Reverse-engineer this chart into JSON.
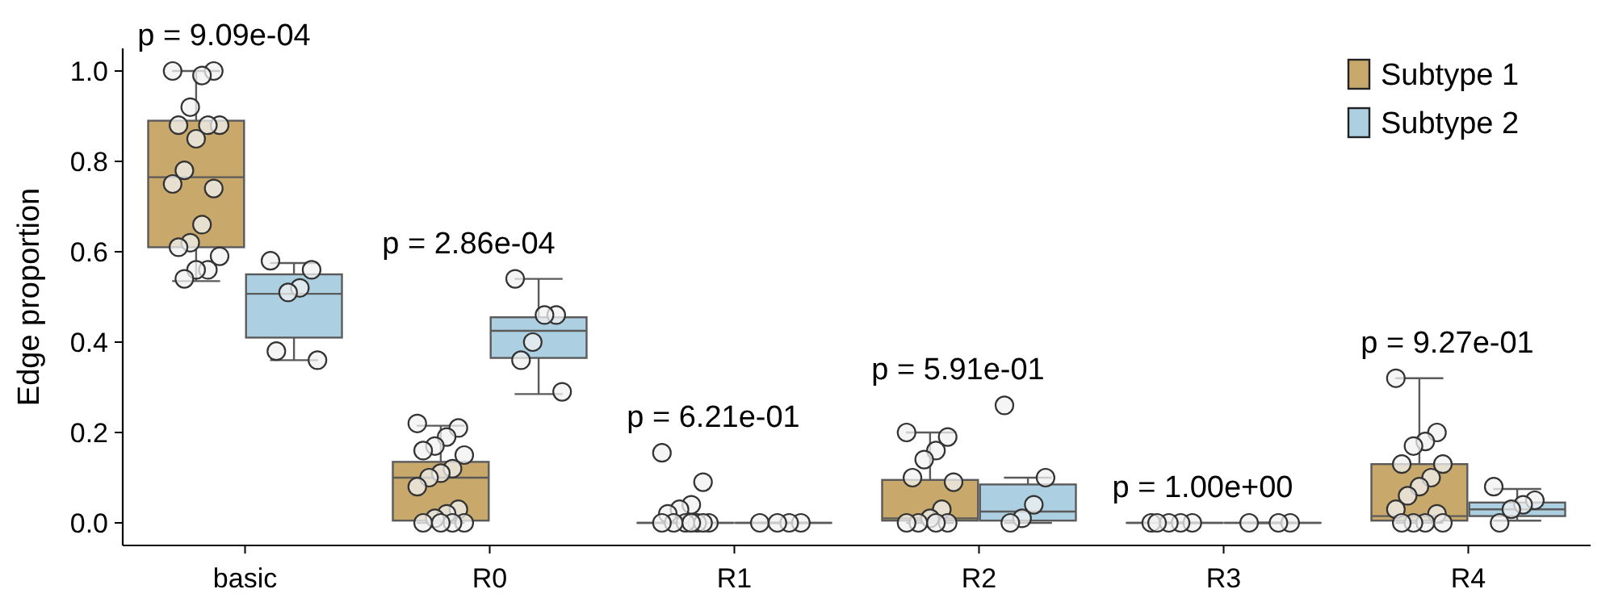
{
  "chart_data": {
    "type": "box",
    "ylabel": "Edge proportion",
    "categories": [
      "basic",
      "R0",
      "R1",
      "R2",
      "R3",
      "R4"
    ],
    "ylim": [
      -0.05,
      1.05
    ],
    "yticks": [
      {
        "value": 0,
        "label": "0.0"
      },
      {
        "value": 0.2,
        "label": "0.2"
      },
      {
        "value": 0.4,
        "label": "0.4"
      },
      {
        "value": 0.6,
        "label": "0.6"
      },
      {
        "value": 0.8,
        "label": "0.8"
      },
      {
        "value": 1,
        "label": "1.0"
      }
    ],
    "legend": "top right",
    "grid": false,
    "annotations": [
      "p = 9.09e-04",
      "p = 2.86e-04",
      "p = 6.21e-01",
      "p = 5.91e-01",
      "p = 1.00e+00",
      "p = 9.27e-01"
    ],
    "series": [
      {
        "name": "Subtype 1",
        "color": "#c8a96b",
        "boxes": [
          {
            "low": 0.535,
            "q1": 0.61,
            "median": 0.765,
            "q3": 0.89,
            "high": 1.0
          },
          {
            "low": 0,
            "q1": 0.005,
            "median": 0.1,
            "q3": 0.135,
            "high": 0.215
          },
          {
            "low": 0,
            "q1": 0,
            "median": 0,
            "q3": 0,
            "high": 0
          },
          {
            "low": 0,
            "q1": 0.005,
            "median": 0.01,
            "q3": 0.095,
            "high": 0.2
          },
          {
            "low": 0,
            "q1": 0,
            "median": 0,
            "q3": 0,
            "high": 0
          },
          {
            "low": 0,
            "q1": 0.005,
            "median": 0.015,
            "q3": 0.13,
            "high": 0.32
          }
        ]
      },
      {
        "name": "Subtype 2",
        "color": "#acd0e1",
        "boxes": [
          {
            "low": 0.36,
            "q1": 0.41,
            "median": 0.507,
            "q3": 0.55,
            "high": 0.575
          },
          {
            "low": 0.285,
            "q1": 0.365,
            "median": 0.425,
            "q3": 0.455,
            "high": 0.54
          },
          {
            "low": 0,
            "q1": 0,
            "median": 0,
            "q3": 0,
            "high": 0
          },
          {
            "low": 0,
            "q1": 0.005,
            "median": 0.025,
            "q3": 0.085,
            "high": 0.1
          },
          {
            "low": 0,
            "q1": 0,
            "median": 0,
            "q3": 0,
            "high": 0
          },
          {
            "low": 0.005,
            "q1": 0.015,
            "median": 0.03,
            "q3": 0.045,
            "high": 0.075
          }
        ]
      },
      {
        "type": "scatter",
        "color": "#f2f2f2",
        "x": [
          "basic",
          "basic",
          "basic",
          "basic",
          "basic",
          "basic",
          "basic",
          "basic",
          "basic",
          "basic",
          "basic",
          "basic",
          "basic",
          "basic",
          "basic",
          "basic",
          "basic",
          "basic",
          "R0",
          "R0",
          "R0",
          "R0",
          "R0",
          "R0",
          "R0",
          "R0",
          "R0",
          "R0",
          "R0",
          "R0",
          "R0",
          "R0",
          "R0",
          "R0",
          "R0",
          "R1",
          "R1",
          "R1",
          "R1",
          "R1",
          "R1",
          "R1",
          "R1",
          "R1",
          "R1",
          "R1",
          "R1",
          "R2",
          "R2",
          "R2",
          "R2",
          "R2",
          "R2",
          "R2",
          "R2",
          "R2",
          "R2",
          "R2",
          "R2",
          "R3",
          "R3",
          "R3",
          "R3",
          "R3",
          "R4",
          "R4",
          "R4",
          "R4",
          "R4",
          "R4",
          "R4",
          "R4",
          "R4",
          "R4",
          "R4",
          "R4",
          "R4",
          "R4",
          "R4"
        ],
        "values": [
          1.0,
          1.0,
          0.99,
          0.92,
          0.88,
          0.88,
          0.88,
          0.85,
          0.78,
          0.75,
          0.74,
          0.66,
          0.62,
          0.61,
          0.59,
          0.56,
          0.56,
          0.54,
          0.22,
          0.21,
          0.19,
          0.17,
          0.16,
          0.15,
          0.12,
          0.11,
          0.1,
          0.08,
          0.03,
          0.02,
          0.01,
          0,
          0,
          0,
          0,
          0.155,
          0.09,
          0.04,
          0.03,
          0.02,
          0,
          0,
          0,
          0,
          0,
          0,
          0,
          0.2,
          0.19,
          0.16,
          0.14,
          0.1,
          0.09,
          0.03,
          0.01,
          0,
          0,
          0,
          0,
          0,
          0,
          0,
          0,
          0,
          0.32,
          0.2,
          0.18,
          0.17,
          0.13,
          0.13,
          0.1,
          0.08,
          0.06,
          0.03,
          0.02,
          0,
          0,
          0,
          0
        ]
      },
      {
        "type": "scatter",
        "color": "#f2f2f2",
        "x": [
          "basic",
          "basic",
          "basic",
          "basic",
          "basic",
          "basic",
          "R0",
          "R0",
          "R0",
          "R0",
          "R0",
          "R0",
          "R1",
          "R1",
          "R1",
          "R1",
          "R2",
          "R2",
          "R2",
          "R2",
          "R2",
          "R3",
          "R3",
          "R3",
          "R4",
          "R4",
          "R4",
          "R4",
          "R4"
        ],
        "values": [
          0.58,
          0.56,
          0.52,
          0.51,
          0.38,
          0.36,
          0.54,
          0.46,
          0.46,
          0.4,
          0.36,
          0.29,
          0,
          0,
          0,
          0,
          0.26,
          0.1,
          0.04,
          0.01,
          0,
          0,
          0,
          0,
          0.08,
          0.05,
          0.04,
          0.03,
          0
        ]
      }
    ]
  }
}
